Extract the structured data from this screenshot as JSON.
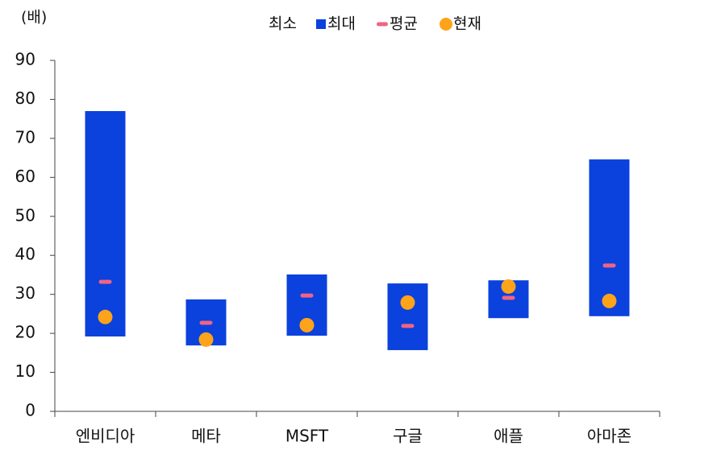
{
  "chart_data": {
    "type": "floating-range",
    "unit_label": "(배)",
    "categories": [
      "엔비디아",
      "메타",
      "MSFT",
      "구글",
      "애플",
      "아마존"
    ],
    "series": [
      {
        "name": "최소",
        "values": [
          19.2,
          16.9,
          19.4,
          15.7,
          23.9,
          24.4
        ]
      },
      {
        "name": "최대",
        "color": "#0b41dd",
        "values": [
          77.0,
          28.7,
          35.1,
          32.8,
          33.6,
          64.6
        ]
      },
      {
        "name": "평균",
        "color": "#f06482",
        "values": [
          33.2,
          22.7,
          29.7,
          21.9,
          29.1,
          37.4
        ]
      },
      {
        "name": "현재",
        "color": "#ffa31a",
        "values": [
          24.2,
          18.4,
          22.1,
          27.9,
          32.0,
          28.3
        ]
      }
    ],
    "ylim": [
      0,
      90
    ],
    "yticks": [
      0,
      10,
      20,
      30,
      40,
      50,
      60,
      70,
      80,
      90
    ],
    "grid": false,
    "legend": "top"
  }
}
